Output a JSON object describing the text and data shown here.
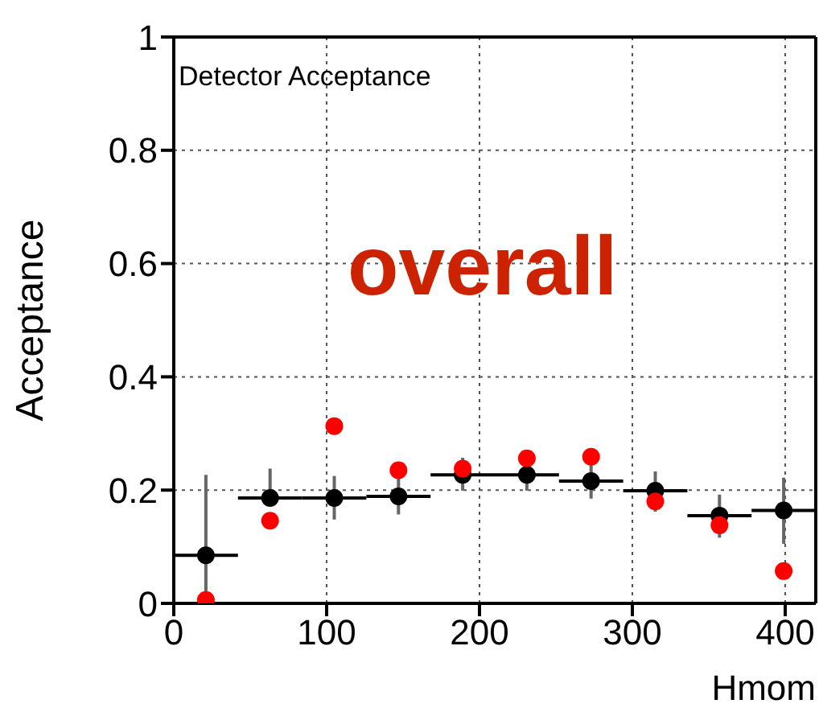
{
  "chart_data": {
    "type": "scatter",
    "title": "Detector Acceptance",
    "xlabel": "Hmom",
    "ylabel": "Acceptance",
    "annotations": [
      "overall"
    ],
    "x": [
      21,
      63,
      105,
      147,
      189,
      231,
      273,
      315,
      357,
      399
    ],
    "series": [
      {
        "color": "#000000",
        "values": [
          0.085,
          0.186,
          0.186,
          0.189,
          0.227,
          0.227,
          0.216,
          0.199,
          0.155,
          0.164
        ],
        "errors": [
          [
            0,
            0.227
          ],
          [
            0.186,
            0.238
          ],
          [
            0.148,
            0.225
          ],
          [
            0.157,
            0.222
          ],
          [
            0.199,
            0.257
          ],
          [
            0.199,
            0.245
          ],
          [
            0.185,
            0.245
          ],
          [
            0.162,
            0.233
          ],
          [
            0.116,
            0.192
          ],
          [
            0.105,
            0.222
          ]
        ],
        "xerrors": [
          21,
          21,
          21,
          21,
          21,
          21,
          21,
          21,
          21,
          21
        ]
      },
      {
        "color": "#ff0000",
        "values": [
          0.006,
          0.146,
          0.313,
          0.235,
          0.238,
          0.256,
          0.259,
          0.18,
          0.138,
          0.057
        ]
      }
    ],
    "xlim": [
      0,
      420
    ],
    "xticks": [
      0,
      100,
      200,
      300,
      400
    ],
    "ylim": [
      0,
      1
    ],
    "yticks": [
      0,
      0.2,
      0.4,
      0.6,
      0.8,
      1
    ],
    "grid": true,
    "marker": "circle",
    "legend": false
  }
}
